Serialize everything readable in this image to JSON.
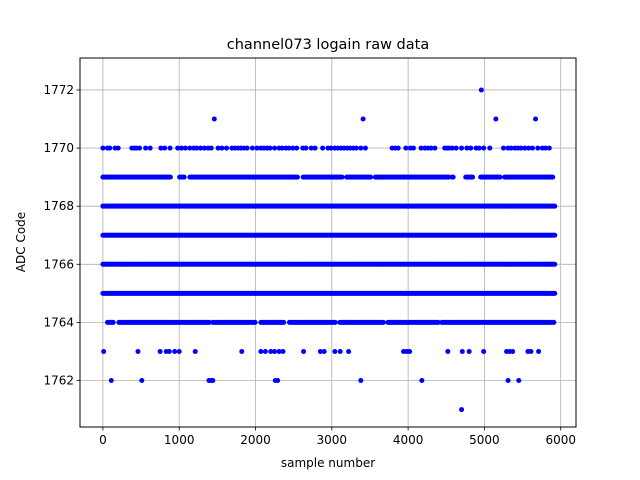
{
  "chart_data": {
    "type": "scatter",
    "title": "channel073 logain raw data",
    "xlabel": "sample number",
    "ylabel": "ADC Code",
    "xlim": [
      -300,
      6200
    ],
    "ylim": [
      1760.4,
      1773.1
    ],
    "xticks": [
      0,
      1000,
      2000,
      3000,
      4000,
      5000,
      6000
    ],
    "yticks": [
      1762,
      1764,
      1766,
      1768,
      1770,
      1772
    ],
    "grid": true,
    "marker_color": "#0000ff",
    "series": [
      {
        "dense_levels": [
          1765,
          1766,
          1767,
          1768
        ],
        "dense_x_range": [
          0,
          5930
        ],
        "points": [
          {
            "y": 1772,
            "x": [
              4960
            ]
          },
          {
            "y": 1771,
            "x": [
              1460,
              3410,
              5150,
              5670
            ]
          },
          {
            "y": 1770,
            "x": [
              0,
              60,
              90,
              160,
              200,
              380,
              410,
              440,
              480,
              560,
              620,
              760,
              810,
              880,
              980,
              1030,
              1080,
              1140,
              1190,
              1230,
              1280,
              1330,
              1380,
              1420,
              1510,
              1560,
              1620,
              1690,
              1730,
              1770,
              1810,
              1850,
              1890,
              1960,
              2020,
              2070,
              2110,
              2150,
              2190,
              2250,
              2310,
              2350,
              2400,
              2440,
              2490,
              2540,
              2620,
              2660,
              2730,
              2780,
              2880,
              2950,
              2990,
              3040,
              3080,
              3120,
              3160,
              3200,
              3240,
              3280,
              3320,
              3380,
              3440,
              3790,
              3830,
              3870,
              3970,
              4030,
              4070,
              4170,
              4220,
              4260,
              4300,
              4350,
              4480,
              4510,
              4540,
              4580,
              4630,
              4700,
              4770,
              4820,
              4890,
              4930,
              4990,
              5070,
              5250,
              5310,
              5350,
              5400,
              5440,
              5480,
              5530,
              5580,
              5630,
              5700,
              5760,
              5800,
              5850
            ]
          },
          {
            "y": 1769,
            "x_range": [
              0,
              5900
            ],
            "gaps": [
              [
                900,
                1000
              ],
              [
                1070,
                1130
              ],
              [
                2560,
                2610
              ],
              [
                3150,
                3180
              ],
              [
                3520,
                3560
              ],
              [
                4540,
                4560
              ],
              [
                4600,
                4750
              ],
              [
                4860,
                4940
              ],
              [
                5220,
                5260
              ]
            ]
          },
          {
            "y": 1764,
            "x_range": [
              60,
              5920
            ],
            "gaps": [
              [
                150,
                200
              ],
              [
                1400,
                1430
              ],
              [
                2000,
                2060
              ],
              [
                2380,
                2440
              ],
              [
                3050,
                3090
              ],
              [
                3680,
                3720
              ],
              [
                4400,
                4430
              ]
            ]
          },
          {
            "y": 1763,
            "x": [
              10,
              460,
              750,
              830,
              870,
              940,
              1000,
              1210,
              1820,
              2070,
              2130,
              2200,
              2250,
              2310,
              2360,
              2630,
              2850,
              2900,
              3040,
              3110,
              3220,
              3940,
              3980,
              4020,
              4520,
              4710,
              4800,
              4990,
              5290,
              5330,
              5370,
              5570,
              5610,
              5710
            ]
          },
          {
            "y": 1762,
            "x": [
              110,
              510,
              1390,
              1420,
              1440,
              2260,
              2290,
              3380,
              4180,
              5310,
              5450
            ]
          },
          {
            "y": 1761,
            "x": [
              4700
            ]
          }
        ]
      }
    ]
  }
}
